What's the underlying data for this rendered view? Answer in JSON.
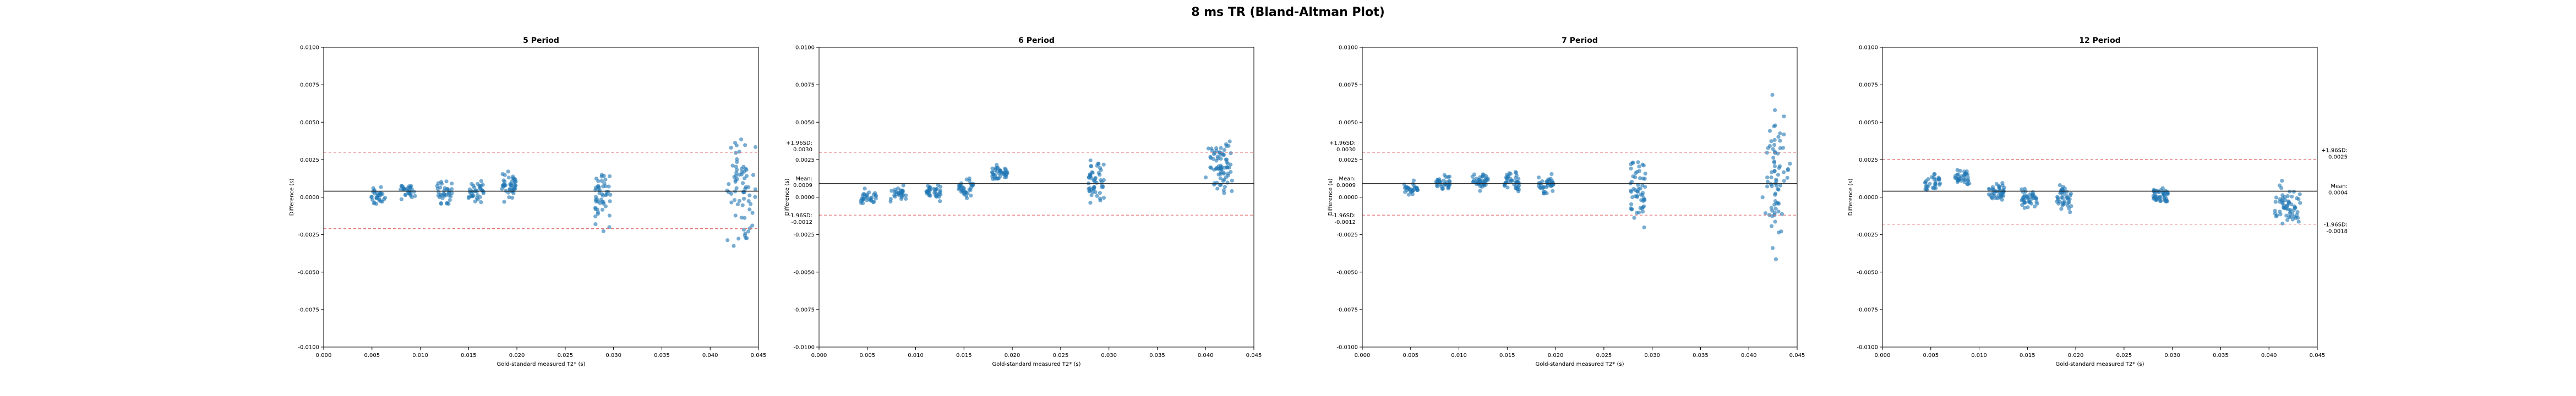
{
  "figure_title": "8 ms TR (Bland-Altman Plot)",
  "chart_data": [
    {
      "type": "scatter",
      "title": "5 Period",
      "xlabel": "Gold-standard measured T2* (s)",
      "ylabel": "Difference (s)",
      "xlim": [
        0,
        0.045
      ],
      "ylim": [
        -0.01,
        0.01
      ],
      "xticks": [
        "0.000",
        "0.005",
        "0.010",
        "0.015",
        "0.020",
        "0.025",
        "0.030",
        "0.035",
        "0.040",
        "0.045"
      ],
      "yticks": [
        "-0.0100",
        "-0.0075",
        "-0.0050",
        "-0.0025",
        "0.0000",
        "0.0025",
        "0.0050",
        "0.0075",
        "0.0100"
      ],
      "mean": 0.0004,
      "upper_loa": 0.003,
      "lower_loa": -0.0021,
      "loa_labels": null,
      "clusters": [
        {
          "x": 0.0056,
          "center": 0.0,
          "spread": 0.0005,
          "n": 30
        },
        {
          "x": 0.0087,
          "center": 0.0004,
          "spread": 0.0004,
          "n": 30
        },
        {
          "x": 0.0125,
          "center": 0.0003,
          "spread": 0.0006,
          "n": 35
        },
        {
          "x": 0.0158,
          "center": 0.0004,
          "spread": 0.0006,
          "n": 35
        },
        {
          "x": 0.0191,
          "center": 0.0007,
          "spread": 0.0007,
          "n": 45
        },
        {
          "x": 0.0289,
          "center": 0.0003,
          "spread": 0.0017,
          "n": 50
        },
        {
          "x": 0.0432,
          "center": 0.0005,
          "spread": 0.0032,
          "n": 70
        }
      ]
    },
    {
      "type": "scatter",
      "title": "6 Period",
      "xlabel": "Gold-standard measured T2* (s)",
      "ylabel": "Difference (s)",
      "xlim": [
        0,
        0.045
      ],
      "ylim": [
        -0.01,
        0.01
      ],
      "xticks": [
        "0.000",
        "0.005",
        "0.010",
        "0.015",
        "0.020",
        "0.025",
        "0.030",
        "0.035",
        "0.040",
        "0.045"
      ],
      "yticks": [
        "-0.0100",
        "-0.0075",
        "-0.0050",
        "-0.0025",
        "0.0000",
        "0.0025",
        "0.0050",
        "0.0075",
        "0.0100"
      ],
      "mean": 0.0009,
      "upper_loa": 0.003,
      "lower_loa": -0.0012,
      "loa_labels": {
        "upper": [
          "+1.96SD:",
          "0.0030"
        ],
        "mean": [
          "Mean:",
          "0.0009"
        ],
        "lower": [
          "-1.96SD:",
          "-0.0012"
        ]
      },
      "clusters": [
        {
          "x": 0.0051,
          "center": 0.0,
          "spread": 0.0004,
          "n": 30
        },
        {
          "x": 0.0082,
          "center": 0.0002,
          "spread": 0.0004,
          "n": 30
        },
        {
          "x": 0.0118,
          "center": 0.0004,
          "spread": 0.0005,
          "n": 35
        },
        {
          "x": 0.0152,
          "center": 0.0006,
          "spread": 0.0006,
          "n": 35
        },
        {
          "x": 0.0187,
          "center": 0.0016,
          "spread": 0.0004,
          "n": 40
        },
        {
          "x": 0.0287,
          "center": 0.0009,
          "spread": 0.0012,
          "n": 50
        },
        {
          "x": 0.0415,
          "center": 0.002,
          "spread": 0.0014,
          "n": 75
        }
      ]
    },
    {
      "type": "scatter",
      "title": "7 Period",
      "xlabel": "Gold-standard measured T2* (s)",
      "ylabel": "Difference (s)",
      "xlim": [
        0,
        0.045
      ],
      "ylim": [
        -0.01,
        0.01
      ],
      "xticks": [
        "0.000",
        "0.005",
        "0.010",
        "0.015",
        "0.020",
        "0.025",
        "0.030",
        "0.035",
        "0.040",
        "0.045"
      ],
      "yticks": [
        "-0.0100",
        "-0.0075",
        "-0.0050",
        "-0.0025",
        "0.0000",
        "0.0025",
        "0.0050",
        "0.0075",
        "0.0100"
      ],
      "mean": 0.0009,
      "upper_loa": 0.003,
      "lower_loa": -0.0012,
      "loa_labels": {
        "upper": [
          "+1.96SD:",
          "0.0030"
        ],
        "mean": [
          "Mean:",
          "0.0009"
        ],
        "lower": [
          "-1.96SD:",
          "-0.0012"
        ]
      },
      "clusters": [
        {
          "x": 0.005,
          "center": 0.0005,
          "spread": 0.0004,
          "n": 30
        },
        {
          "x": 0.0083,
          "center": 0.0009,
          "spread": 0.0004,
          "n": 35
        },
        {
          "x": 0.0122,
          "center": 0.0011,
          "spread": 0.0005,
          "n": 40
        },
        {
          "x": 0.0155,
          "center": 0.0011,
          "spread": 0.0006,
          "n": 40
        },
        {
          "x": 0.019,
          "center": 0.0009,
          "spread": 0.0006,
          "n": 40
        },
        {
          "x": 0.0285,
          "center": 0.0004,
          "spread": 0.0016,
          "n": 55
        },
        {
          "x": 0.0428,
          "center": 0.0015,
          "spread": 0.0035,
          "n": 75
        }
      ]
    },
    {
      "type": "scatter",
      "title": "12 Period",
      "xlabel": "Gold-standard measured T2* (s)",
      "ylabel": "Difference (s)",
      "xlim": [
        0,
        0.045
      ],
      "ylim": [
        -0.01,
        0.01
      ],
      "xticks": [
        "0.000",
        "0.005",
        "0.010",
        "0.015",
        "0.020",
        "0.025",
        "0.030",
        "0.035",
        "0.040",
        "0.045"
      ],
      "yticks": [
        "-0.0100",
        "-0.0075",
        "-0.0050",
        "-0.0025",
        "0.0000",
        "0.0025",
        "0.0050",
        "0.0075",
        "0.0100"
      ],
      "mean": 0.0004,
      "upper_loa": 0.0025,
      "lower_loa": -0.0018,
      "loa_labels": {
        "upper": [
          "+1.96SD:",
          "0.0025"
        ],
        "mean": [
          "Mean:",
          "0.0004"
        ],
        "lower": [
          "-1.96SD:",
          "-0.0018"
        ]
      },
      "clusters": [
        {
          "x": 0.0052,
          "center": 0.001,
          "spread": 0.0004,
          "n": 30
        },
        {
          "x": 0.0083,
          "center": 0.0013,
          "spread": 0.0004,
          "n": 35
        },
        {
          "x": 0.0118,
          "center": 0.0004,
          "spread": 0.0005,
          "n": 40
        },
        {
          "x": 0.0152,
          "center": 0.0,
          "spread": 0.0007,
          "n": 40
        },
        {
          "x": 0.0188,
          "center": -0.0001,
          "spread": 0.0007,
          "n": 40
        },
        {
          "x": 0.0288,
          "center": 0.0001,
          "spread": 0.0005,
          "n": 45
        },
        {
          "x": 0.0418,
          "center": -0.0005,
          "spread": 0.0012,
          "n": 60
        }
      ]
    }
  ]
}
